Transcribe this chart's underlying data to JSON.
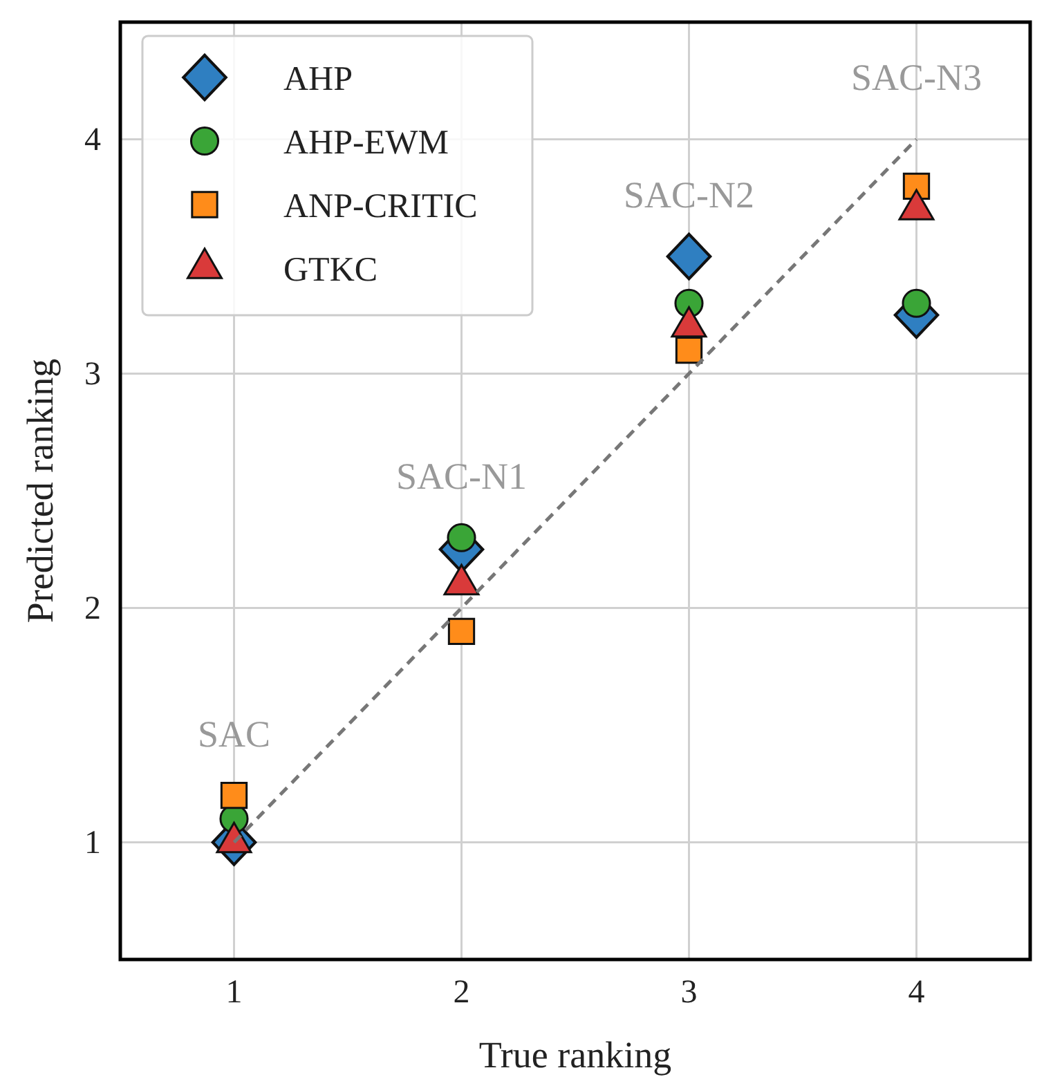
{
  "chart_data": {
    "type": "scatter",
    "xlabel": "True ranking",
    "ylabel": "Predicted ranking",
    "x": [
      1,
      2,
      3,
      4
    ],
    "xlim": [
      0.5,
      4.5
    ],
    "ylim": [
      0.5,
      4.5
    ],
    "xticks": [
      1,
      2,
      3,
      4
    ],
    "yticks": [
      1,
      2,
      3,
      4
    ],
    "grid": true,
    "legend": "top left",
    "series": [
      {
        "type": "line",
        "x": [
          1,
          4
        ],
        "values": [
          1,
          4
        ],
        "color": "#777777",
        "line_style": "dashed",
        "marker": "none"
      },
      {
        "name": "AHP",
        "color": "#2f7fc1",
        "marker": "diamond",
        "values": [
          1.0,
          2.25,
          3.5,
          3.25
        ]
      },
      {
        "name": "AHP-EWM",
        "color": "#3aa537",
        "marker": "circle",
        "values": [
          1.1,
          2.3,
          3.3,
          3.3
        ]
      },
      {
        "name": "ANP-CRITIC",
        "color": "#ff8c1a",
        "marker": "square",
        "values": [
          1.2,
          1.9,
          3.1,
          3.8
        ]
      },
      {
        "name": "GTKC",
        "color": "#d93a3a",
        "marker": "triangle",
        "values": [
          1.0,
          2.1,
          3.2,
          3.7
        ]
      }
    ],
    "annotations": [
      "SAC",
      "SAC-N1",
      "SAC-N2",
      "SAC-N3"
    ]
  }
}
